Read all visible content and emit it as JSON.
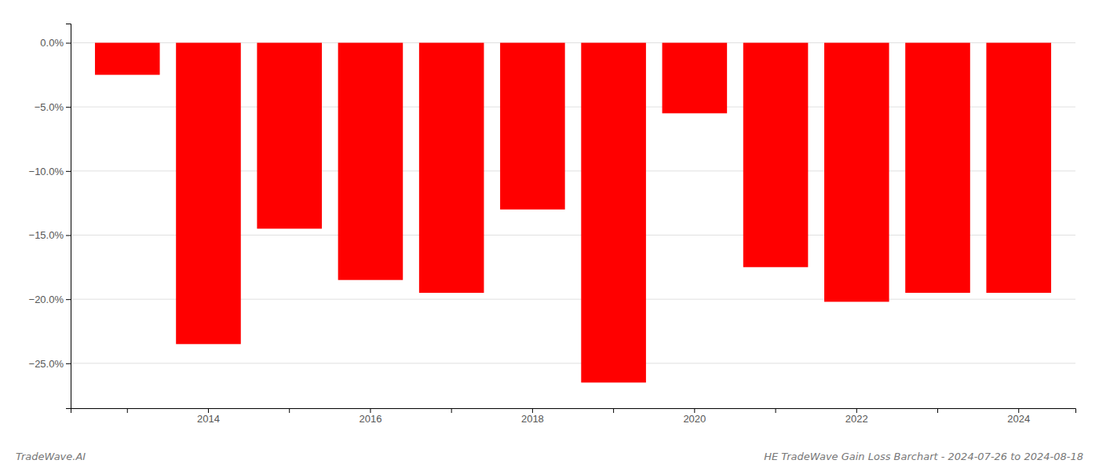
{
  "chart_data": {
    "type": "bar",
    "title": "HE TradeWave Gain Loss Barchart - 2024-07-26 to 2024-08-18",
    "annotations": [
      "TradeWave.AI"
    ],
    "categories": [
      null,
      "2014",
      null,
      "2016",
      null,
      "2018",
      null,
      "2020",
      null,
      "2022",
      null,
      "2024"
    ],
    "values": [
      -2.5,
      -23.5,
      -14.5,
      -18.5,
      -19.5,
      -13.0,
      -26.5,
      -5.5,
      -17.5,
      -20.2,
      -19.5,
      -19.5
    ],
    "color": "#ff0000",
    "ylim": [
      -28.5,
      1.5
    ],
    "yticks": [
      {
        "value": 0.0,
        "label": "0.0%"
      },
      {
        "value": -5.0,
        "label": "−5.0%"
      },
      {
        "value": -10.0,
        "label": "−10.0%"
      },
      {
        "value": -15.0,
        "label": "−15.0%"
      },
      {
        "value": -20.0,
        "label": "−20.0%"
      },
      {
        "value": -25.0,
        "label": "−25.0%"
      }
    ],
    "grid": true
  }
}
